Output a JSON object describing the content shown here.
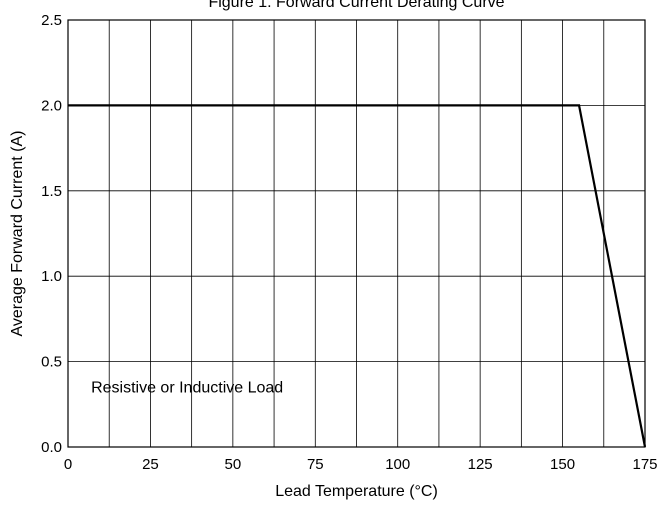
{
  "chart_data": {
    "type": "line",
    "title": "Figure 1. Forward Current Derating Curve",
    "xlabel": "Lead Temperature (°C)",
    "ylabel": "Average Forward Current (A)",
    "xlim": [
      0,
      175
    ],
    "ylim": [
      0,
      2.5
    ],
    "x_ticks": [
      0,
      25,
      50,
      75,
      100,
      125,
      150,
      175
    ],
    "x_tick_labels": [
      "0",
      "25",
      "50",
      "75",
      "100",
      "125",
      "150",
      "175"
    ],
    "y_ticks": [
      0,
      0.5,
      1.0,
      1.5,
      2.0,
      2.5
    ],
    "y_tick_labels": [
      "0.0",
      "0.5",
      "1.0",
      "1.5",
      "2.0",
      "2.5"
    ],
    "x_grid": [
      0,
      12.5,
      25,
      37.5,
      50,
      62.5,
      75,
      87.5,
      100,
      112.5,
      125,
      137.5,
      150,
      162.5,
      175
    ],
    "y_grid": [
      0,
      0.5,
      1.0,
      1.5,
      2.0,
      2.5
    ],
    "grid": true,
    "series": [
      {
        "x": [
          0,
          155,
          175
        ],
        "y": [
          2.0,
          2.0,
          0.0
        ]
      }
    ],
    "annotations": [
      {
        "text": "Resistive or Inductive Load",
        "x": 7,
        "y": 0.32
      }
    ]
  }
}
